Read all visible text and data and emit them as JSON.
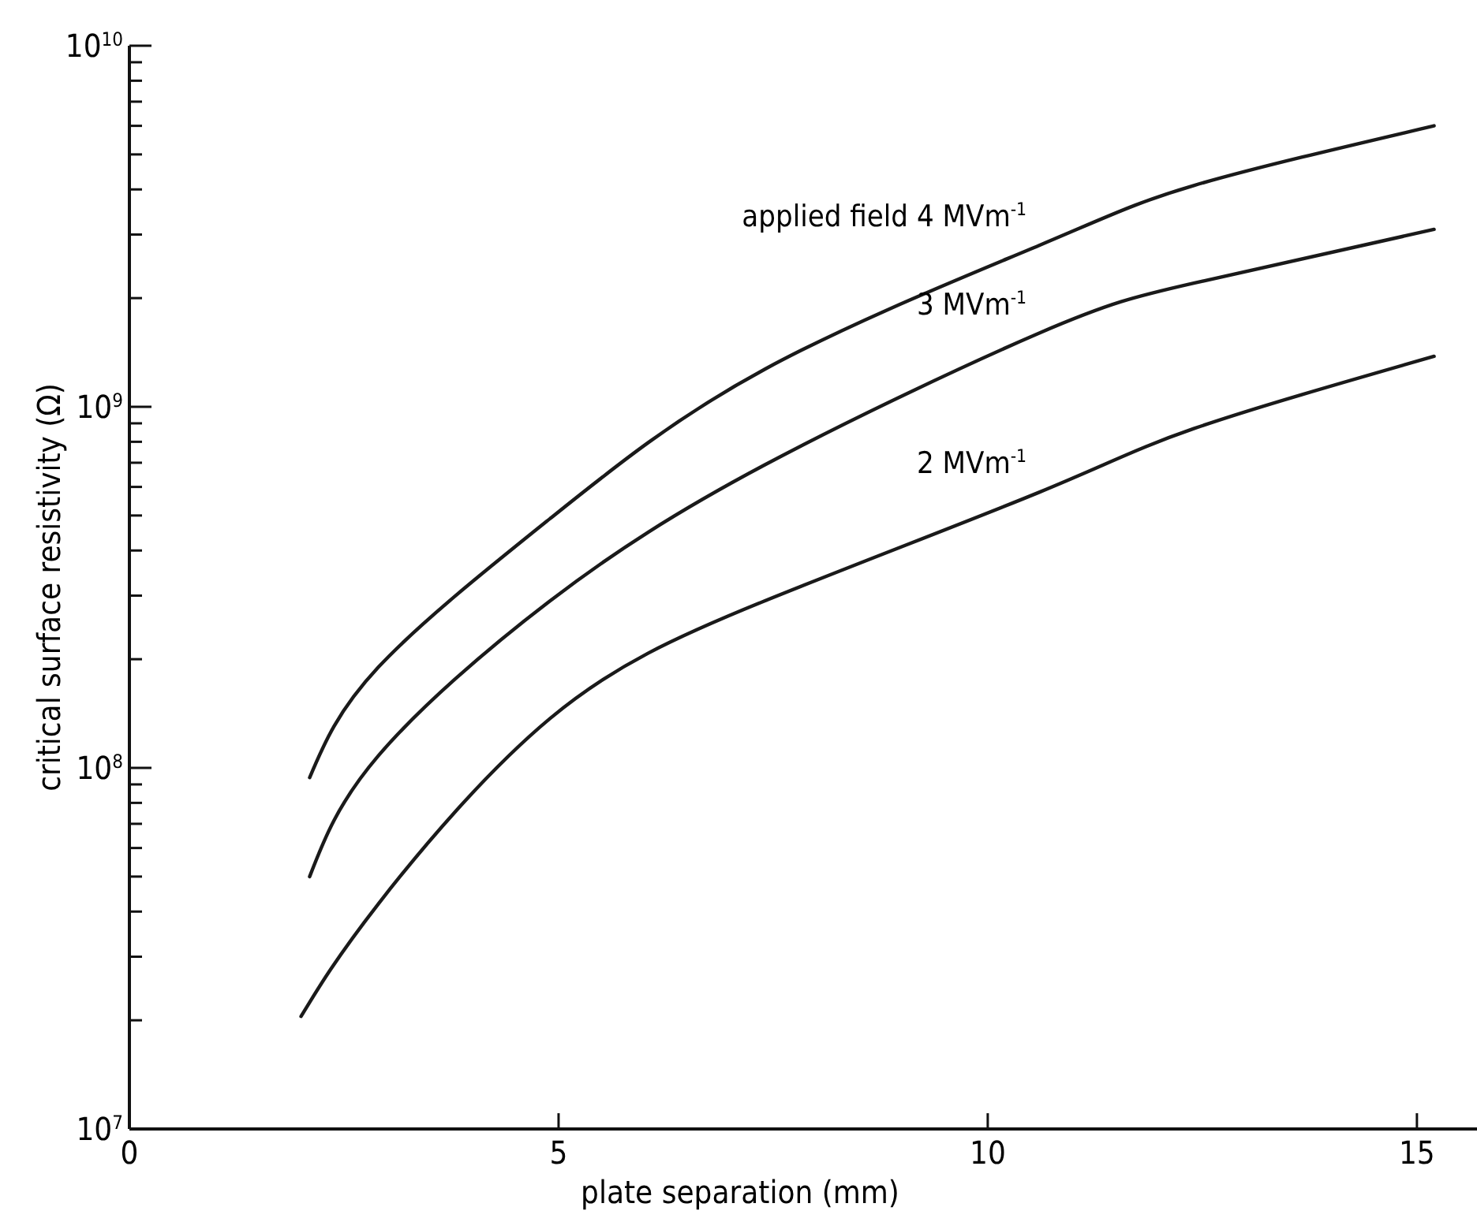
{
  "chart_data": {
    "type": "line",
    "xlabel": "plate separation (mm)",
    "ylabel": "critical surface resistivity  (Ω)",
    "series": [
      {
        "name": "applied field  4 MVm$^{-1}$",
        "color": "#1a1a1a",
        "x": [
          2.1,
          2.9,
          4.9,
          7.4,
          10.6,
          12.4,
          15.2
        ],
        "values": [
          94000000.0,
          190000000.0,
          490000000.0,
          1270000000.0,
          2800000000.0,
          4100000000.0,
          6000000000.0
        ]
      },
      {
        "name": "3 MVm$^{-1}$",
        "color": "#1a1a1a",
        "x": [
          2.1,
          2.9,
          4.9,
          7.4,
          10.6,
          12.4,
          15.2
        ],
        "values": [
          50000000.0,
          108000000.0,
          290000000.0,
          690000000.0,
          1600000000.0,
          2200000000.0,
          3100000000.0
        ]
      },
      {
        "name": "2 MVm$^{-1}$",
        "color": "#1a1a1a",
        "x": [
          2.0,
          2.9,
          4.9,
          7.4,
          10.6,
          12.4,
          15.2
        ],
        "values": [
          20500000.0,
          42000000.0,
          137000000.0,
          290000000.0,
          580000000.0,
          870000000.0,
          1380000000.0
        ]
      }
    ],
    "xlim": [
      0,
      15.7
    ],
    "xticks": [
      0,
      5,
      10,
      15
    ],
    "ylim": [
      10000000.0,
      10000000000.0
    ],
    "log": true,
    "yticks": [
      {
        "value": 10000000.0,
        "label": "10$^{7}$"
      },
      {
        "value": 20000000.0,
        "label": null
      },
      {
        "value": 30000000.0,
        "label": null
      },
      {
        "value": 40000000.0,
        "label": null
      },
      {
        "value": 50000000.0,
        "label": null
      },
      {
        "value": 60000000.0,
        "label": null
      },
      {
        "value": 70000000.0,
        "label": null
      },
      {
        "value": 80000000.0,
        "label": null
      },
      {
        "value": 90000000.0,
        "label": null
      },
      {
        "value": 100000000.0,
        "label": "10$^{8}$"
      },
      {
        "value": 200000000.0,
        "label": null
      },
      {
        "value": 300000000.0,
        "label": null
      },
      {
        "value": 400000000.0,
        "label": null
      },
      {
        "value": 500000000.0,
        "label": null
      },
      {
        "value": 600000000.0,
        "label": null
      },
      {
        "value": 700000000.0,
        "label": null
      },
      {
        "value": 800000000.0,
        "label": null
      },
      {
        "value": 900000000.0,
        "label": null
      },
      {
        "value": 1000000000.0,
        "label": "10$^{9}$"
      },
      {
        "value": 2000000000.0,
        "label": null
      },
      {
        "value": 3000000000.0,
        "label": null
      },
      {
        "value": 4000000000.0,
        "label": null
      },
      {
        "value": 5000000000.0,
        "label": null
      },
      {
        "value": 6000000000.0,
        "label": null
      },
      {
        "value": 7000000000.0,
        "label": null
      },
      {
        "value": 8000000000.0,
        "label": null
      },
      {
        "value": 9000000000.0,
        "label": null
      },
      {
        "value": 10000000000.0,
        "label": "10$^{10}$"
      }
    ],
    "grid": false,
    "marker": "none",
    "line_style": "solid"
  }
}
